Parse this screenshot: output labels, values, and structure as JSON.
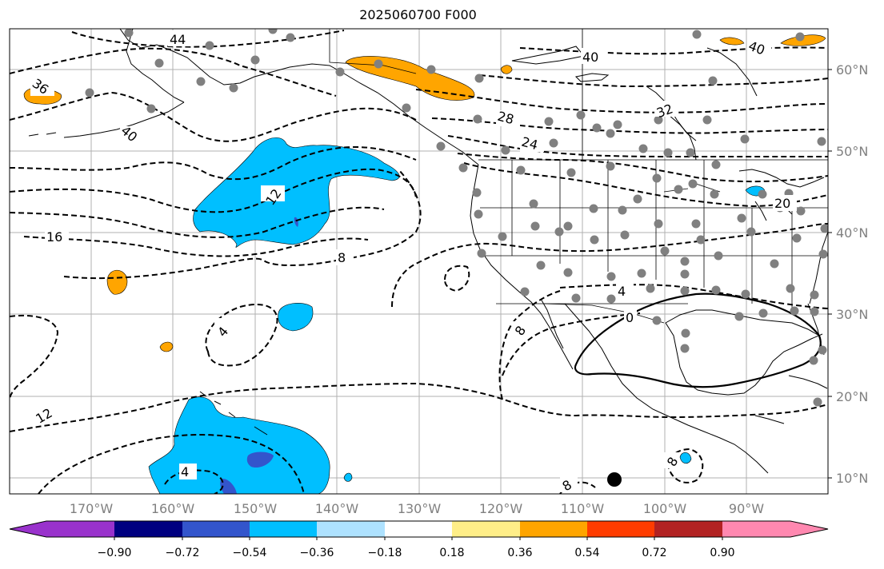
{
  "title": "2025060700 F000",
  "colors": {
    "frame": "#000000",
    "grid": "#b0b0b0",
    "coast": "#000000",
    "station": "#808080",
    "contour": "#000000",
    "pos_036": "#ffa500",
    "neg_036": "#00bfff",
    "neg_054": "#3355cc",
    "neg_072": "#000080",
    "neg_090": "#9932cc"
  },
  "lat_labels": [
    "60°N",
    "50°N",
    "40°N",
    "30°N",
    "20°N",
    "10°N"
  ],
  "lon_labels": [
    "170°W",
    "160°W",
    "150°W",
    "140°W",
    "130°W",
    "120°W",
    "110°W",
    "100°W",
    "90°W"
  ],
  "contour_labels": [
    "44",
    "36",
    "40",
    "40",
    "40",
    "32",
    "28",
    "24",
    "20",
    "16",
    "12",
    "8",
    "4",
    "0",
    "12",
    "8",
    "12",
    "4",
    "8",
    "8"
  ],
  "colorbar": {
    "colors": [
      "#9932cc",
      "#000080",
      "#3355cc",
      "#00bfff",
      "#aee2ff",
      "#ffffff",
      "#ffee88",
      "#ffa500",
      "#ff3c00",
      "#b22222",
      "#ff88b0",
      "#ff88b0"
    ],
    "ticks": [
      "−0.90",
      "−0.72",
      "−0.54",
      "−0.36",
      "−0.18",
      "0.18",
      "0.36",
      "0.54",
      "0.72",
      "0.90"
    ]
  }
}
